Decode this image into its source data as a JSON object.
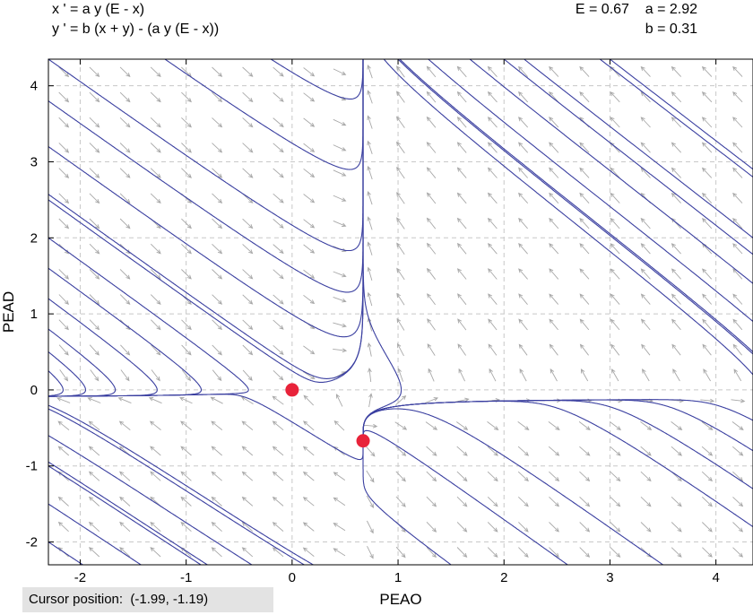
{
  "equations": {
    "x_eq": "x ' = a y (E - x)",
    "y_eq": "y ' = b (x + y) - (a y (E - x))"
  },
  "params": {
    "line1": "E = 0.67    a = 2.92",
    "line2": "b = 0.31"
  },
  "status": {
    "cursor_label": "Cursor position:",
    "cursor_value": "(-1.99, -1.19)"
  },
  "colors": {
    "trajectory": "#3a3fa0",
    "arrow": "#a8a8a8",
    "grid": "#c8c8c8",
    "equilibrium": "#e8233a"
  },
  "chart_data": {
    "type": "phase-plane",
    "xlabel": "PEAO",
    "ylabel": "PEAD",
    "xlim": [
      -2.3,
      4.35
    ],
    "ylim": [
      -2.3,
      4.35
    ],
    "xticks": [
      -2,
      -1,
      0,
      1,
      2,
      3,
      4
    ],
    "yticks": [
      -2,
      -1,
      0,
      1,
      2,
      3,
      4
    ],
    "grid": true,
    "parameters": {
      "E": 0.67,
      "a": 2.92,
      "b": 0.31
    },
    "equilibria": [
      {
        "x": 0,
        "y": 0
      },
      {
        "x": 0.67,
        "y": -0.67
      }
    ],
    "trajectory_seeds": [
      [
        -2.3,
        4.35
      ],
      [
        -2.3,
        3.8
      ],
      [
        -2.3,
        3.2
      ],
      [
        -2.3,
        2.5
      ],
      [
        -2.3,
        2.0
      ],
      [
        -2.3,
        1.6
      ],
      [
        -2.3,
        1.2
      ],
      [
        -2.3,
        0.8
      ],
      [
        -2.3,
        0.5
      ],
      [
        -2.3,
        0.25
      ],
      [
        -1.2,
        4.35
      ],
      [
        -0.2,
        4.35
      ],
      [
        4.35,
        2.8
      ],
      [
        4.35,
        2.0
      ],
      [
        4.35,
        1.4
      ],
      [
        4.35,
        0.9
      ],
      [
        4.35,
        0.5
      ],
      [
        4.35,
        0.2
      ],
      [
        1.0,
        4.35
      ],
      [
        2.0,
        4.35
      ],
      [
        3.0,
        4.35
      ],
      [
        -2.3,
        -0.25
      ],
      [
        -2.3,
        -0.6
      ],
      [
        -2.3,
        -1.0
      ],
      [
        -2.3,
        -1.5
      ],
      [
        -2.3,
        -2.0
      ],
      [
        -0.8,
        -2.3
      ],
      [
        0.2,
        -2.3
      ],
      [
        4.35,
        -0.4
      ],
      [
        4.35,
        -0.8
      ],
      [
        4.35,
        -1.3
      ],
      [
        4.35,
        -1.8
      ],
      [
        1.5,
        -2.3
      ],
      [
        2.6,
        -2.3
      ],
      [
        3.5,
        -2.3
      ],
      [
        0.1,
        0.25
      ],
      [
        0.9,
        -0.2
      ],
      [
        0.45,
        -0.8
      ]
    ]
  }
}
